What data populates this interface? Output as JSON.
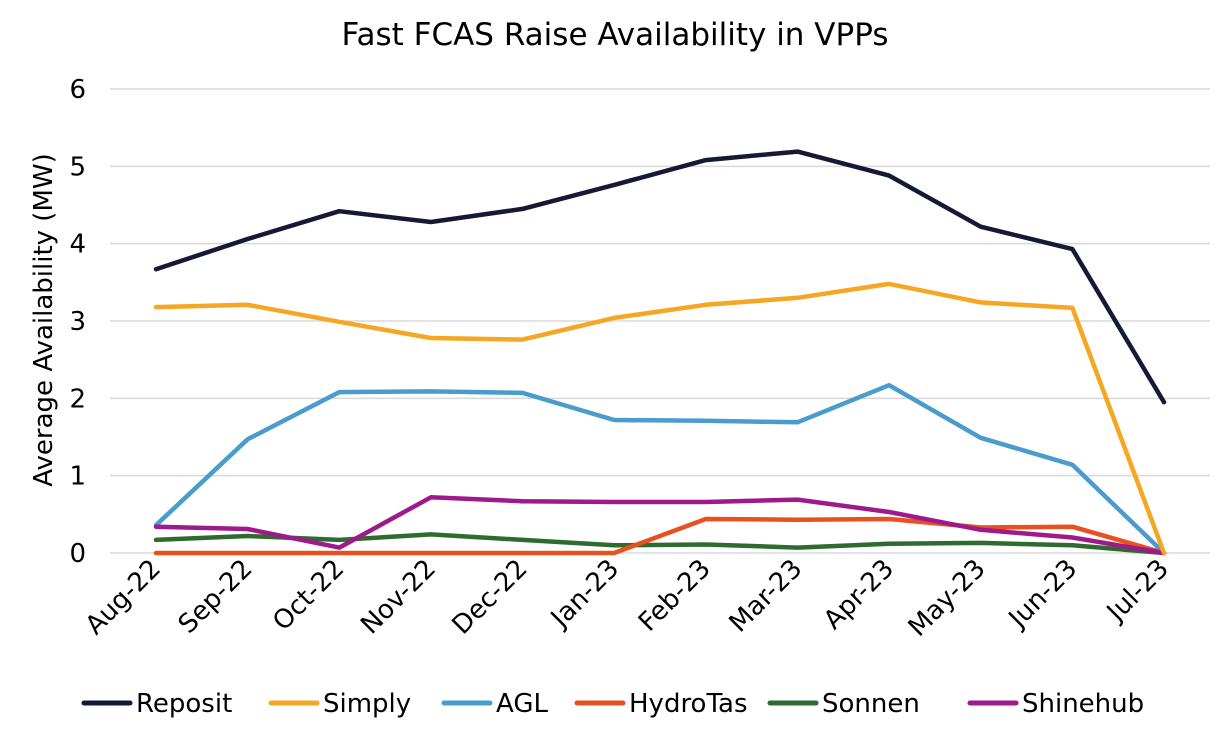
{
  "chart_data": {
    "type": "line",
    "title": "Fast FCAS Raise Availability in VPPs",
    "xlabel": "",
    "ylabel": "Average Availability (MW)",
    "ylim": [
      0,
      6
    ],
    "yticks": [
      "0",
      "1",
      "2",
      "3",
      "4",
      "5",
      "6"
    ],
    "grid": true,
    "legend_position": "bottom",
    "categories": [
      "Aug-22",
      "Sep-22",
      "Oct-22",
      "Nov-22",
      "Dec-22",
      "Jan-23",
      "Feb-23",
      "Mar-23",
      "Apr-23",
      "May-23",
      "Jun-23",
      "Jul-23"
    ],
    "series": [
      {
        "name": "Reposit",
        "color": "#141a33",
        "values": [
          3.67,
          4.06,
          4.42,
          4.28,
          4.45,
          4.76,
          5.08,
          5.19,
          4.88,
          4.22,
          3.93,
          1.95
        ]
      },
      {
        "name": "Simply",
        "color": "#f5a623",
        "values": [
          3.18,
          3.21,
          2.99,
          2.78,
          2.76,
          3.04,
          3.21,
          3.3,
          3.48,
          3.24,
          3.17,
          0.0
        ]
      },
      {
        "name": "AGL",
        "color": "#4a9ccc",
        "values": [
          0.36,
          1.47,
          2.08,
          2.09,
          2.07,
          1.72,
          1.71,
          1.69,
          2.17,
          1.49,
          1.14,
          0.0
        ]
      },
      {
        "name": "HydroTas",
        "color": "#e8501f",
        "values": [
          0.0,
          0.0,
          0.0,
          0.0,
          0.0,
          0.0,
          0.44,
          0.43,
          0.44,
          0.33,
          0.34,
          0.0
        ]
      },
      {
        "name": "Sonnen",
        "color": "#2e6b2e",
        "values": [
          0.17,
          0.22,
          0.17,
          0.24,
          0.17,
          0.1,
          0.11,
          0.07,
          0.12,
          0.13,
          0.1,
          0.0
        ]
      },
      {
        "name": "Shinehub",
        "color": "#9e1a8c",
        "values": [
          0.34,
          0.31,
          0.07,
          0.72,
          0.67,
          0.66,
          0.66,
          0.69,
          0.53,
          0.3,
          0.2,
          0.0
        ]
      }
    ]
  }
}
